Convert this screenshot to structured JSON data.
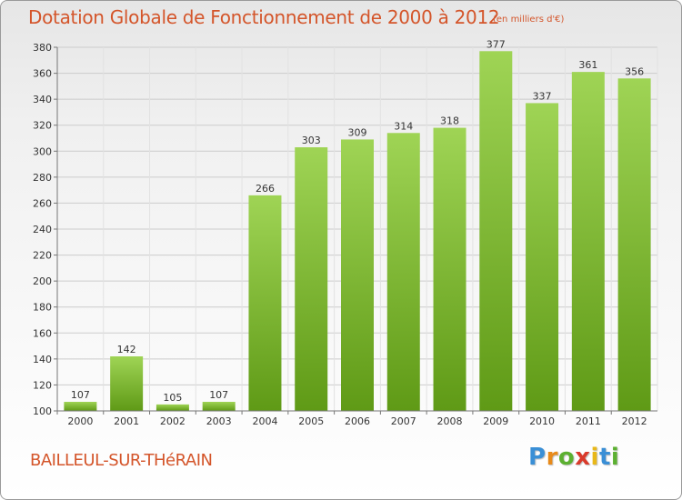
{
  "title": "Dotation Globale de Fonctionnement de 2000 à 2012",
  "unit": "(en milliers d'€)",
  "place": "BAILLEUL-SUR-THéRAIN",
  "logo": {
    "letters": [
      "P",
      "r",
      "o",
      "x",
      "i",
      "t",
      "i"
    ],
    "colors": [
      "#3a8fd6",
      "#e88a1a",
      "#5cb031",
      "#d93a2b",
      "#e8b81a",
      "#3a8fd6",
      "#5cb031"
    ]
  },
  "colors": {
    "bar_top": "#9fd455",
    "bar_bottom": "#5f9a16",
    "title": "#d4552a"
  },
  "chart_data": {
    "type": "bar",
    "categories": [
      "2000",
      "2001",
      "2002",
      "2003",
      "2004",
      "2005",
      "2006",
      "2007",
      "2008",
      "2009",
      "2010",
      "2011",
      "2012"
    ],
    "values": [
      107,
      142,
      105,
      107,
      266,
      303,
      309,
      314,
      318,
      377,
      337,
      361,
      356
    ],
    "title": "Dotation Globale de Fonctionnement de 2000 à 2012",
    "ylim": [
      100,
      380
    ],
    "yticks": [
      100,
      120,
      140,
      160,
      180,
      200,
      220,
      240,
      260,
      280,
      300,
      320,
      340,
      360,
      380
    ],
    "grid": true,
    "data_labels": true
  }
}
